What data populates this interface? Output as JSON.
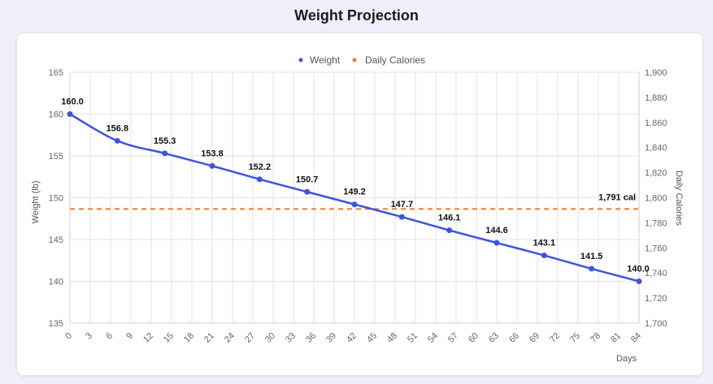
{
  "page": {
    "title": "Weight Projection"
  },
  "chart_data": {
    "type": "line",
    "title": "Weight Projection",
    "xlabel": "Days",
    "ylabel": "Weight (lb)",
    "y2label": "Daily Calories",
    "xlim": [
      0,
      84
    ],
    "ylim": [
      135,
      165
    ],
    "y2lim": [
      1700,
      1900
    ],
    "x_ticks": [
      0,
      3,
      6,
      9,
      12,
      15,
      18,
      21,
      24,
      27,
      30,
      33,
      36,
      39,
      42,
      45,
      48,
      51,
      54,
      57,
      60,
      63,
      66,
      69,
      72,
      75,
      78,
      81,
      84
    ],
    "y_ticks": [
      "165",
      "160",
      "155",
      "150",
      "145",
      "140",
      "135"
    ],
    "y2_ticks": [
      "1,900",
      "1,880",
      "1,860",
      "1,840",
      "1,820",
      "1,800",
      "1,780",
      "1,760",
      "1,740",
      "1,720",
      "1,700"
    ],
    "legend": {
      "placement": "top-center"
    },
    "grid": true,
    "series": [
      {
        "name": "Weight",
        "color": "#3b55e0",
        "axis": "left",
        "x": [
          0,
          7,
          14,
          21,
          28,
          35,
          42,
          49,
          56,
          63,
          70,
          77,
          84
        ],
        "values": [
          160.0,
          156.8,
          155.3,
          153.8,
          152.2,
          150.7,
          149.2,
          147.7,
          146.1,
          144.6,
          143.1,
          141.5,
          140.0
        ],
        "labels": [
          "160.0",
          "156.8",
          "155.3",
          "153.8",
          "152.2",
          "150.7",
          "149.2",
          "147.7",
          "146.1",
          "144.6",
          "143.1",
          "141.5",
          "140.0"
        ]
      },
      {
        "name": "Daily Calories",
        "color": "#f07a2a",
        "axis": "right",
        "style": "dashed",
        "x": [
          0,
          84
        ],
        "values": [
          1791,
          1791
        ],
        "label": "1,791 cal"
      }
    ]
  }
}
